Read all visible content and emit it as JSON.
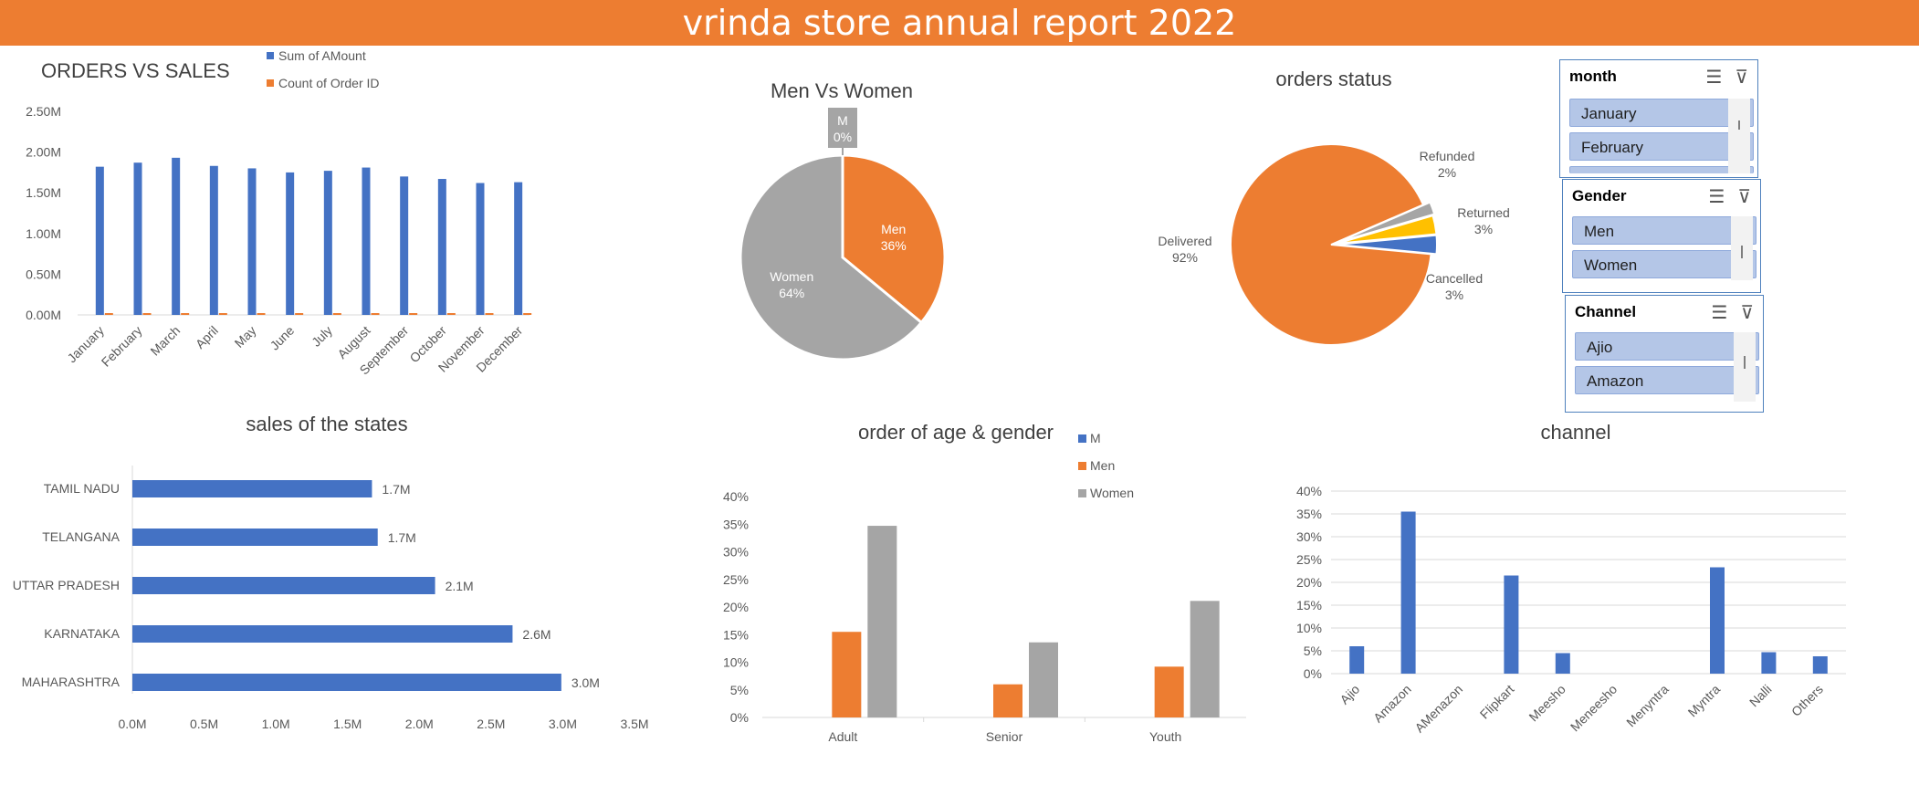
{
  "banner": {
    "title": "vrinda store annual report 2022"
  },
  "colors": {
    "blue": "#4472c4",
    "orange": "#ed7d31",
    "gray": "#a5a5a5",
    "yellow": "#ffc000",
    "banner": "#ed7d31"
  },
  "slicers": {
    "month": {
      "title": "month",
      "items": [
        "January",
        "February"
      ]
    },
    "gender": {
      "title": "Gender",
      "items": [
        "Men",
        "Women"
      ]
    },
    "channel": {
      "title": "Channel",
      "items": [
        "Ajio",
        "Amazon"
      ]
    }
  },
  "chart_data": [
    {
      "id": "orders-vs-sales",
      "type": "bar",
      "title": "ORDERS VS SALES",
      "categories": [
        "January",
        "February",
        "March",
        "April",
        "May",
        "June",
        "July",
        "August",
        "September",
        "October",
        "November",
        "December"
      ],
      "series": [
        {
          "name": "Sum of AMount",
          "color": "#4472c4",
          "values": [
            1.82,
            1.87,
            1.93,
            1.83,
            1.8,
            1.75,
            1.77,
            1.81,
            1.7,
            1.67,
            1.62,
            1.63
          ]
        },
        {
          "name": "Count of Order ID",
          "color": "#ed7d31",
          "values": [
            0.0026,
            0.0027,
            0.0028,
            0.0026,
            0.0026,
            0.0025,
            0.0025,
            0.0026,
            0.0024,
            0.0024,
            0.0023,
            0.0023
          ]
        }
      ],
      "yticks": [
        "0.00M",
        "0.50M",
        "1.00M",
        "1.50M",
        "2.00M",
        "2.50M"
      ],
      "ylim": [
        0,
        2.5
      ],
      "legend": "top"
    },
    {
      "id": "men-vs-women",
      "type": "pie",
      "title": "Men Vs Women",
      "slices": [
        {
          "label": "Men",
          "value": 36,
          "text": "36%",
          "color": "#ed7d31"
        },
        {
          "label": "Women",
          "value": 64,
          "text": "64%",
          "color": "#a5a5a5"
        },
        {
          "label": "M",
          "value": 0,
          "text": "0%",
          "color": "#a5a5a5"
        }
      ]
    },
    {
      "id": "orders-status",
      "type": "pie",
      "title": "orders status",
      "slices": [
        {
          "label": "Delivered",
          "value": 92,
          "text": "92%",
          "color": "#ed7d31"
        },
        {
          "label": "Refunded",
          "value": 2,
          "text": "2%",
          "color": "#a5a5a5"
        },
        {
          "label": "Returned",
          "value": 3,
          "text": "3%",
          "color": "#ffc000"
        },
        {
          "label": "Cancelled",
          "value": 3,
          "text": "3%",
          "color": "#4472c4"
        }
      ]
    },
    {
      "id": "sales-of-states",
      "type": "bar",
      "orientation": "horizontal",
      "title": "sales of the states",
      "categories": [
        "TAMIL NADU",
        "TELANGANA",
        "UTTAR PRADESH",
        "KARNATAKA",
        "MAHARASHTRA"
      ],
      "values": [
        1.7,
        1.7,
        2.1,
        2.6,
        3.0
      ],
      "bar_values": [
        1.67,
        1.71,
        2.11,
        2.65,
        2.99
      ],
      "labels": [
        "1.7M",
        "1.7M",
        "2.1M",
        "2.6M",
        "3.0M"
      ],
      "xticks": [
        "0.0M",
        "0.5M",
        "1.0M",
        "1.5M",
        "2.0M",
        "2.5M",
        "3.0M",
        "3.5M"
      ],
      "xlim": [
        0,
        3.5
      ]
    },
    {
      "id": "age-gender",
      "type": "bar",
      "title": "order of age & gender",
      "categories": [
        "Adult",
        "Senior",
        "Youth"
      ],
      "series": [
        {
          "name": "M",
          "color": "#4472c4",
          "values": [
            0,
            0,
            0
          ]
        },
        {
          "name": "Men",
          "color": "#ed7d31",
          "values": [
            15.5,
            6,
            9.2
          ]
        },
        {
          "name": "Women",
          "color": "#a5a5a5",
          "values": [
            34.7,
            13.6,
            21.1
          ]
        }
      ],
      "yticks": [
        "0%",
        "5%",
        "10%",
        "15%",
        "20%",
        "25%",
        "30%",
        "35%",
        "40%"
      ],
      "ylim": [
        0,
        40
      ],
      "legend": "right"
    },
    {
      "id": "channel",
      "type": "bar",
      "title": "channel",
      "categories": [
        "Ajio",
        "Amazon",
        "AMenazon",
        "Flipkart",
        "Meesho",
        "Meneesho",
        "Menyntra",
        "Myntra",
        "Nalli",
        "Others"
      ],
      "values": [
        6,
        35.5,
        0,
        21.5,
        4.5,
        0,
        0,
        23.3,
        4.7,
        3.8
      ],
      "yticks": [
        "0%",
        "5%",
        "10%",
        "15%",
        "20%",
        "25%",
        "30%",
        "35%",
        "40%"
      ],
      "ylim": [
        0,
        40
      ],
      "grid": true
    }
  ]
}
